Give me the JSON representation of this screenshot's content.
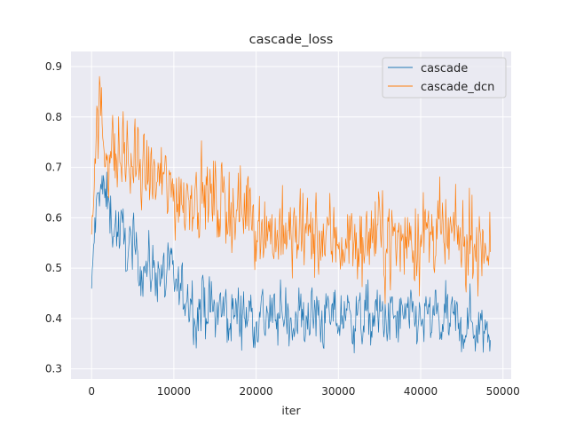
{
  "chart_data": {
    "type": "line",
    "title": "cascade_loss",
    "xlabel": "iter",
    "ylabel": "",
    "xlim": [
      -2500,
      51000
    ],
    "ylim": [
      0.28,
      0.93
    ],
    "xticks": [
      0,
      10000,
      20000,
      30000,
      40000,
      50000
    ],
    "xtick_labels": [
      "0",
      "10000",
      "20000",
      "30000",
      "40000",
      "50000"
    ],
    "yticks": [
      0.3,
      0.4,
      0.5,
      0.6,
      0.7,
      0.8,
      0.9
    ],
    "ytick_labels": [
      "0.3",
      "0.4",
      "0.5",
      "0.6",
      "0.7",
      "0.8",
      "0.9"
    ],
    "grid": true,
    "legend_position": "top-right",
    "series": [
      {
        "name": "cascade",
        "color": "#1f77b4",
        "x": [
          0,
          300,
          1000,
          2000,
          3000,
          4000,
          5000,
          6000,
          7000,
          8000,
          9000,
          10000,
          11000,
          12000,
          13000,
          14000,
          16000,
          18000,
          20000,
          22000,
          25000,
          28000,
          30000,
          33000,
          35000,
          38000,
          40000,
          43000,
          45000,
          48000,
          48500
        ],
        "values": [
          0.43,
          0.56,
          0.67,
          0.62,
          0.58,
          0.55,
          0.53,
          0.51,
          0.5,
          0.5,
          0.48,
          0.47,
          0.45,
          0.43,
          0.42,
          0.42,
          0.41,
          0.41,
          0.41,
          0.4,
          0.4,
          0.4,
          0.4,
          0.4,
          0.4,
          0.395,
          0.4,
          0.39,
          0.39,
          0.385,
          0.39
        ],
        "noise_amplitude": 0.032
      },
      {
        "name": "cascade_dcn",
        "color": "#ff7f0e",
        "x": [
          0,
          300,
          1000,
          2000,
          3000,
          4000,
          5000,
          6000,
          7000,
          8000,
          9000,
          10000,
          12000,
          14000,
          16000,
          18000,
          19000,
          20000,
          21000,
          22000,
          24000,
          26000,
          28000,
          30000,
          33000,
          35000,
          38000,
          40000,
          43000,
          45000,
          48000,
          48500
        ],
        "values": [
          0.6,
          0.72,
          0.8,
          0.74,
          0.72,
          0.71,
          0.7,
          0.69,
          0.68,
          0.67,
          0.66,
          0.65,
          0.65,
          0.64,
          0.63,
          0.62,
          0.63,
          0.6,
          0.58,
          0.57,
          0.56,
          0.56,
          0.56,
          0.56,
          0.55,
          0.56,
          0.56,
          0.56,
          0.555,
          0.55,
          0.555,
          0.57
        ],
        "noise_amplitude": 0.045
      }
    ]
  }
}
